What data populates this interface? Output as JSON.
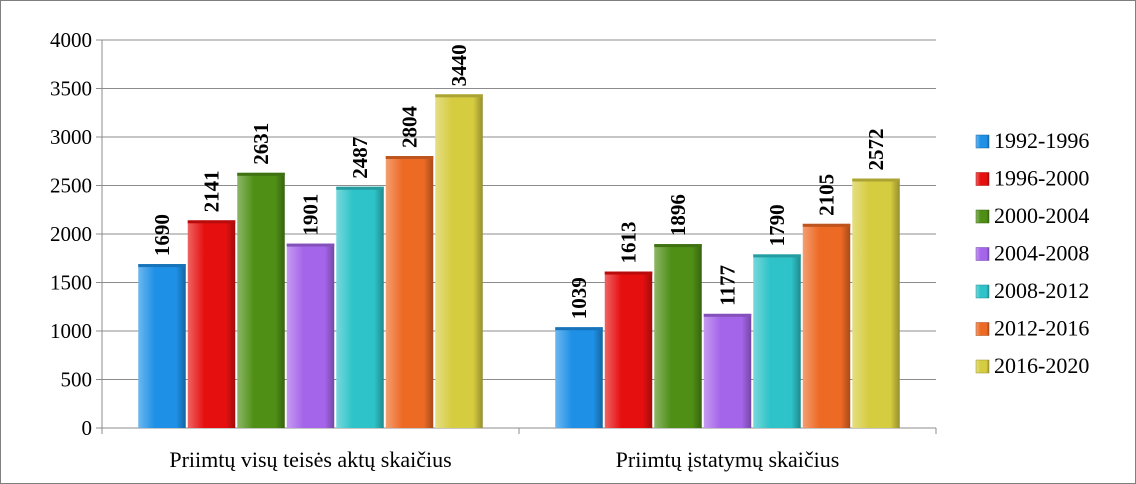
{
  "chart_data": {
    "type": "bar",
    "categories": [
      "Priimtų visų teisės aktų skaičius",
      "Priimtų įstatymų skaičius"
    ],
    "series": [
      {
        "name": "1992-1996",
        "values": [
          1690,
          1039
        ],
        "color": "#1e90e6"
      },
      {
        "name": "1996-2000",
        "values": [
          2141,
          1613
        ],
        "color": "#e60f0f"
      },
      {
        "name": "2000-2004",
        "values": [
          2631,
          1896
        ],
        "color": "#4f8f16"
      },
      {
        "name": "2004-2008",
        "values": [
          1901,
          1177
        ],
        "color": "#a565ea"
      },
      {
        "name": "2008-2012",
        "values": [
          2487,
          1790
        ],
        "color": "#2ec3c8"
      },
      {
        "name": "2012-2016",
        "values": [
          2804,
          2105
        ],
        "color": "#ed6a25"
      },
      {
        "name": "2016-2020",
        "values": [
          3440,
          2572
        ],
        "color": "#d6cc40"
      }
    ],
    "ylim": [
      0,
      4000
    ],
    "yticks": [
      "0",
      "500",
      "1000",
      "1500",
      "2000",
      "2500",
      "3000",
      "3500",
      "4000"
    ],
    "grid": true,
    "legend_position": "right"
  }
}
